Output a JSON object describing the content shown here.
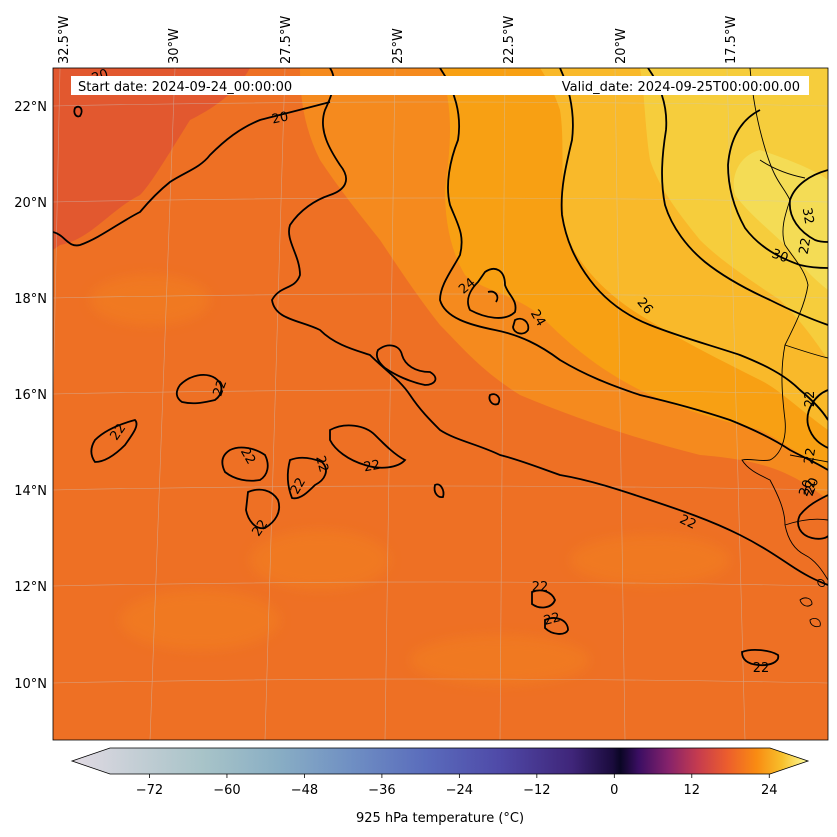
{
  "map": {
    "start_date": "Start date: 2024-09-24_00:00:00",
    "valid_date": "Valid_date: 2024-09-25T00:00:00.00",
    "lon_labels": [
      "32.5°W",
      "30°W",
      "27.5°W",
      "25°W",
      "22.5°W",
      "20°W",
      "17.5°W"
    ],
    "lat_labels": [
      "22°N",
      "20°N",
      "18°N",
      "16°N",
      "14°N",
      "12°N",
      "10°N"
    ],
    "contour_labels": [
      "20",
      "20",
      "22",
      "22",
      "22",
      "22",
      "22",
      "22",
      "22",
      "22",
      "22",
      "22",
      "22",
      "22",
      "22",
      "22",
      "22",
      "24",
      "24",
      "26",
      "30",
      "32",
      "20",
      "20"
    ],
    "colors": {
      "base": "#ee7024",
      "warm1": "#f58a1e",
      "warm2": "#f8a013",
      "warm3": "#f9b92a",
      "warm4": "#f6cd3c",
      "hot": "#f4dc55",
      "cool_nw": "#e2582f"
    }
  },
  "colorbar": {
    "title": "925 hPa temperature ($^\\circ$C)",
    "title_display": "925 hPa temperature (°C)",
    "ticks": [
      "−72",
      "−60",
      "−48",
      "−36",
      "−24",
      "−12",
      "0",
      "12",
      "24"
    ],
    "range": [
      -84,
      30
    ],
    "colormap": "inferno-reversed-below-zero"
  }
}
